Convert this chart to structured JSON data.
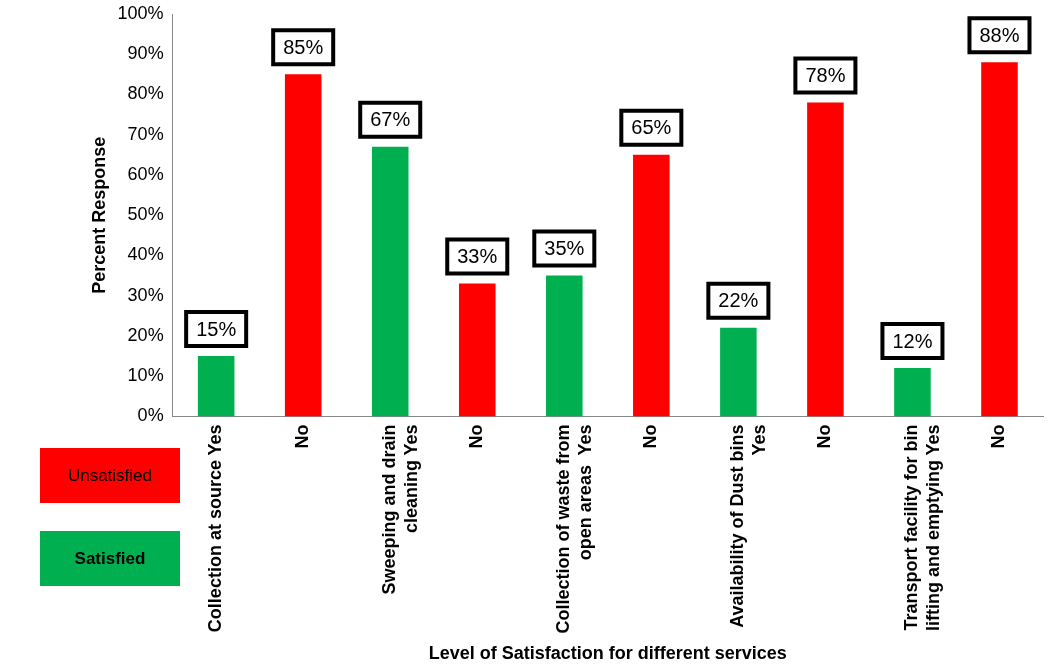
{
  "chart_data": {
    "type": "bar",
    "xlabel": "Level of Satisfaction for different services",
    "ylabel": "Percent Response",
    "categories": [
      "Collection at source Yes",
      "No",
      "Sweeping and drain cleaning Yes",
      "No",
      "Collection of waste from open areas  Yes",
      "No",
      "Availability of Dust bins Yes",
      "No",
      "Transport facility for bin lifting and emptying Yes",
      "No"
    ],
    "series": [
      {
        "name": "Unsatisfied",
        "color": "#ff0000",
        "values": [
          null,
          85,
          null,
          33,
          null,
          65,
          null,
          78,
          null,
          88
        ],
        "value_labels": [
          null,
          "85%",
          null,
          "33%",
          null,
          "65%",
          null,
          "78%",
          null,
          "88%"
        ]
      },
      {
        "name": "Satisfied",
        "color": "#00b050",
        "values": [
          15,
          null,
          67,
          null,
          35,
          null,
          22,
          null,
          12,
          null
        ],
        "value_labels": [
          "15%",
          null,
          "67%",
          null,
          "35%",
          null,
          "22%",
          null,
          "12%",
          null
        ]
      }
    ],
    "ylim": [
      0,
      100
    ],
    "yticks": [
      {
        "value": 0,
        "label": "0%"
      },
      {
        "value": 10,
        "label": "10%"
      },
      {
        "value": 20,
        "label": "20%"
      },
      {
        "value": 30,
        "label": "30%"
      },
      {
        "value": 40,
        "label": "40%"
      },
      {
        "value": 50,
        "label": "50%"
      },
      {
        "value": 60,
        "label": "60%"
      },
      {
        "value": 70,
        "label": "70%"
      },
      {
        "value": 80,
        "label": "80%"
      },
      {
        "value": 90,
        "label": "90%"
      },
      {
        "value": 100,
        "label": "100%"
      }
    ],
    "legend": "bottom left"
  }
}
